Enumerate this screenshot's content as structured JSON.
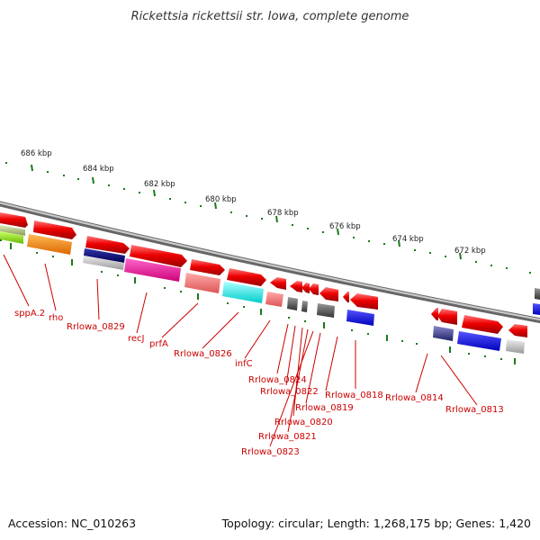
{
  "title": "Rickettsia rickettsii str. Iowa, complete genome",
  "footer": {
    "accession": "Accession: NC_010263",
    "summary": "Topology: circular; Length: 1,268,175 bp; Genes: 1,420"
  },
  "colors": {
    "forward_gene": "#ee0000",
    "backbone": "#888888",
    "ruler": "#1a7a1a",
    "label": "#cc0000"
  },
  "ruler_labels": [
    "686 kbp",
    "684 kbp",
    "682 kbp",
    "680 kbp",
    "678 kbp",
    "676 kbp",
    "674 kbp",
    "672 kbp"
  ],
  "gene_labels": [
    "sppA.2",
    "rho",
    "Rrlowa_0829",
    "recJ",
    "prfA",
    "Rrlowa_0826",
    "infC",
    "Rrlowa_0824",
    "Rrlowa_0822",
    "Rrlowa_0819",
    "Rrlowa_0818",
    "Rrlowa_0814",
    "Rrlowa_0813",
    "Rrlowa_0820",
    "Rrlowa_0821",
    "Rrlowa_0823"
  ]
}
